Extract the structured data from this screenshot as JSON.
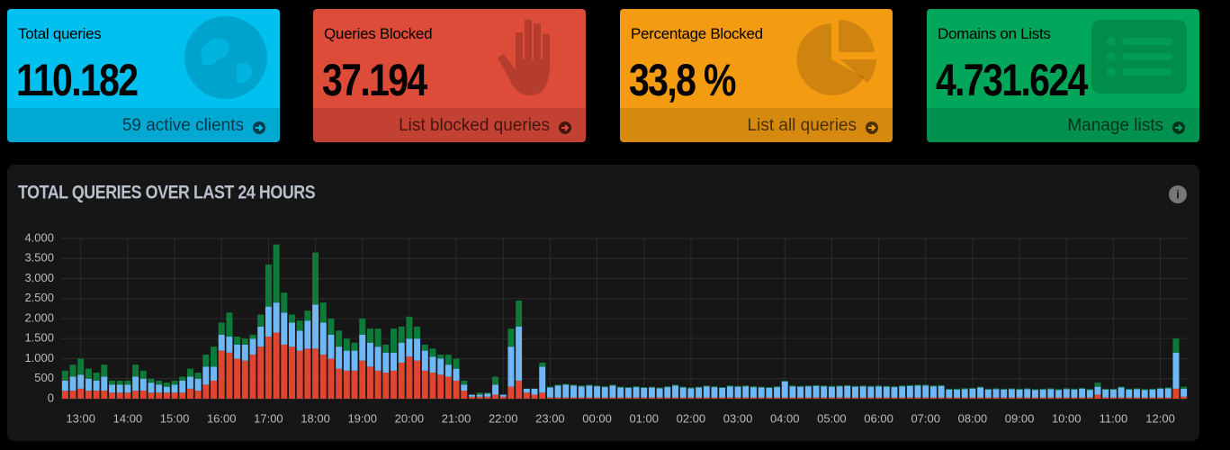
{
  "cards": [
    {
      "title": "Total queries",
      "value": "110.182",
      "footer": "59 active clients"
    },
    {
      "title": "Queries Blocked",
      "value": "37.194",
      "footer": "List blocked queries"
    },
    {
      "title": "Percentage Blocked",
      "value": "33,8 %",
      "footer": "List all queries"
    },
    {
      "title": "Domains on Lists",
      "value": "4.731.624",
      "footer": "Manage lists"
    }
  ],
  "chart_data": {
    "type": "bar",
    "stacked": true,
    "title": "TOTAL QUERIES OVER LAST 24 HOURS",
    "categories": [
      null,
      null,
      "13:00",
      null,
      null,
      null,
      null,
      null,
      "14:00",
      null,
      null,
      null,
      null,
      null,
      "15:00",
      null,
      null,
      null,
      null,
      null,
      "16:00",
      null,
      null,
      null,
      null,
      null,
      "17:00",
      null,
      null,
      null,
      null,
      null,
      "18:00",
      null,
      null,
      null,
      null,
      null,
      "19:00",
      null,
      null,
      null,
      null,
      null,
      "20:00",
      null,
      null,
      null,
      null,
      null,
      "21:00",
      null,
      null,
      null,
      null,
      null,
      "22:00",
      null,
      null,
      null,
      null,
      null,
      "23:00",
      null,
      null,
      null,
      null,
      null,
      "00:00",
      null,
      null,
      null,
      null,
      null,
      "01:00",
      null,
      null,
      null,
      null,
      null,
      "02:00",
      null,
      null,
      null,
      null,
      null,
      "03:00",
      null,
      null,
      null,
      null,
      null,
      "04:00",
      null,
      null,
      null,
      null,
      null,
      "05:00",
      null,
      null,
      null,
      null,
      null,
      "06:00",
      null,
      null,
      null,
      null,
      null,
      "07:00",
      null,
      null,
      null,
      null,
      null,
      "08:00",
      null,
      null,
      null,
      null,
      null,
      "09:00",
      null,
      null,
      null,
      null,
      null,
      "10:00",
      null,
      null,
      null,
      null,
      null,
      "11:00",
      null,
      null,
      null,
      null,
      null,
      "12:00",
      null,
      null,
      null
    ],
    "series": [
      {
        "color": "#e0452f",
        "values": [
          200,
          200,
          250,
          200,
          200,
          200,
          150,
          150,
          150,
          200,
          200,
          150,
          150,
          150,
          150,
          150,
          250,
          200,
          350,
          450,
          1200,
          1150,
          1000,
          950,
          1100,
          1300,
          1550,
          1650,
          1350,
          1300,
          1200,
          1250,
          1250,
          1100,
          1000,
          750,
          700,
          700,
          950,
          800,
          700,
          650,
          700,
          900,
          1050,
          950,
          700,
          650,
          600,
          550,
          450,
          200,
          50,
          50,
          50,
          100,
          50,
          300,
          450,
          150,
          100,
          150,
          30,
          30,
          30,
          30,
          30,
          30,
          30,
          30,
          30,
          30,
          30,
          30,
          30,
          30,
          30,
          30,
          30,
          30,
          30,
          30,
          30,
          30,
          30,
          30,
          30,
          30,
          30,
          30,
          30,
          30,
          30,
          30,
          30,
          30,
          30,
          30,
          30,
          30,
          30,
          30,
          30,
          30,
          30,
          30,
          30,
          30,
          30,
          30,
          30,
          30,
          30,
          30,
          30,
          30,
          30,
          30,
          30,
          30,
          30,
          30,
          30,
          30,
          30,
          30,
          30,
          30,
          30,
          30,
          30,
          30,
          100,
          30,
          30,
          30,
          30,
          30,
          30,
          30,
          30,
          30,
          250,
          50
        ]
      },
      {
        "color": "#6fb7f5",
        "values": [
          250,
          350,
          350,
          300,
          250,
          350,
          200,
          200,
          200,
          350,
          300,
          250,
          200,
          150,
          200,
          300,
          300,
          300,
          450,
          350,
          400,
          400,
          350,
          400,
          400,
          500,
          750,
          750,
          800,
          600,
          500,
          700,
          1100,
          800,
          600,
          550,
          500,
          500,
          650,
          600,
          600,
          500,
          450,
          500,
          450,
          550,
          500,
          400,
          400,
          300,
          300,
          150,
          50,
          50,
          80,
          250,
          50,
          1000,
          1350,
          100,
          150,
          650,
          250,
          300,
          320,
          300,
          280,
          300,
          280,
          260,
          300,
          250,
          240,
          260,
          240,
          250,
          230,
          260,
          300,
          250,
          230,
          250,
          280,
          260,
          240,
          280,
          270,
          280,
          260,
          250,
          240,
          260,
          400,
          280,
          270,
          280,
          290,
          280,
          270,
          280,
          290,
          270,
          280,
          270,
          280,
          270,
          260,
          280,
          290,
          300,
          300,
          280,
          290,
          200,
          200,
          210,
          220,
          250,
          200,
          210,
          200,
          210,
          200,
          210,
          190,
          200,
          210,
          190,
          210,
          200,
          220,
          190,
          200,
          200,
          200,
          250,
          200,
          210,
          190,
          200,
          220,
          230,
          900,
          200
        ]
      },
      {
        "color": "#0e7a3a",
        "values": [
          250,
          300,
          400,
          250,
          200,
          300,
          100,
          100,
          100,
          300,
          200,
          100,
          100,
          100,
          100,
          100,
          200,
          150,
          300,
          500,
          300,
          600,
          200,
          150,
          100,
          300,
          1050,
          1450,
          500,
          200,
          250,
          250,
          1300,
          500,
          400,
          400,
          300,
          200,
          400,
          350,
          450,
          200,
          600,
          400,
          550,
          300,
          150,
          200,
          100,
          250,
          250,
          100,
          0,
          50,
          20,
          200,
          0,
          450,
          650,
          0,
          0,
          100,
          20,
          20,
          20,
          20,
          20,
          20,
          20,
          20,
          20,
          20,
          20,
          20,
          20,
          20,
          20,
          20,
          20,
          20,
          20,
          20,
          20,
          20,
          20,
          20,
          20,
          20,
          20,
          20,
          20,
          20,
          20,
          20,
          20,
          20,
          20,
          20,
          20,
          20,
          20,
          20,
          20,
          20,
          20,
          20,
          20,
          20,
          20,
          20,
          20,
          20,
          20,
          20,
          20,
          20,
          20,
          20,
          20,
          20,
          20,
          20,
          20,
          20,
          20,
          20,
          20,
          20,
          20,
          20,
          20,
          20,
          100,
          20,
          20,
          20,
          20,
          20,
          20,
          20,
          20,
          20,
          350,
          50
        ]
      }
    ],
    "ylim": [
      0,
      4000
    ],
    "yticks": [
      0,
      500,
      {
        "value": 1000,
        "label": "1.000"
      },
      {
        "value": 1500,
        "label": "1.500"
      },
      {
        "value": 2000,
        "label": "2.000"
      },
      {
        "value": 2500,
        "label": "2.500"
      },
      {
        "value": 3000,
        "label": "3.000"
      },
      {
        "value": 3500,
        "label": "3.500"
      },
      {
        "value": 4000,
        "label": "4.000"
      }
    ],
    "grid": true
  }
}
